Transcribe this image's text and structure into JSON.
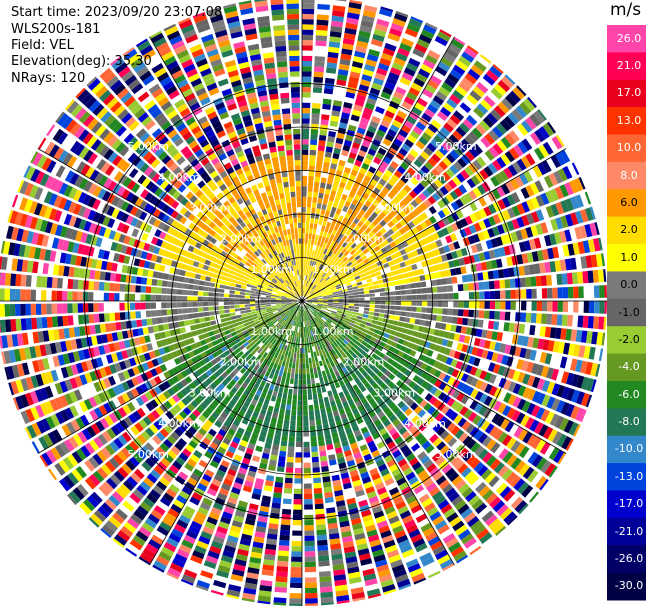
{
  "header": {
    "start_time": "Start time: 2023/09/20 23:07:08",
    "instrument": "WLS200s-181",
    "field": "Field: VEL",
    "elevation": "Elevation(deg): 35.30",
    "nrays": "NRays: 120"
  },
  "colorbar": {
    "unit": "m/s",
    "ticks": [
      "26.0",
      "21.0",
      "17.0",
      "13.0",
      "10.0",
      "8.0",
      "6.0",
      "2.0",
      "1.0",
      "0.0",
      "-1.0",
      "-2.0",
      "-4.0",
      "-6.0",
      "-8.0",
      "-10.0",
      "-13.0",
      "-17.0",
      "-21.0",
      "-26.0",
      "-30.0"
    ],
    "colors": [
      "#ff44aa",
      "#ff0055",
      "#e8001c",
      "#ff3300",
      "#ff6633",
      "#ff8866",
      "#ff9900",
      "#ffdd00",
      "#ffff00",
      "#7a7a7a",
      "#666666",
      "#99cc33",
      "#669922",
      "#228822",
      "#227755",
      "#3388cc",
      "#0044dd",
      "#0000cc",
      "#000099",
      "#000066",
      "#000044"
    ]
  },
  "chart_data": {
    "type": "ppi",
    "title": "",
    "field": "VEL",
    "unit": "m/s",
    "nrays": 120,
    "range_rings_km": [
      1.0,
      2.0,
      3.0,
      4.0,
      5.0
    ],
    "ring_labels": [
      "1.00km",
      "2.00km",
      "3.00km",
      "4.00km",
      "5.00km"
    ],
    "spokes_deg": [
      0,
      30,
      60,
      90,
      120,
      150,
      180,
      210,
      240,
      270,
      300,
      330
    ],
    "value_range": [
      -30.0,
      26.0
    ],
    "pattern": {
      "north_sector_inner_velocity": 6.0,
      "north_sector_mid_velocity": 2.0,
      "south_sector_inner_velocity": -4.0,
      "south_sector_mid_velocity": -6.0,
      "valid_range_km": 3.3,
      "outer_region": "noise"
    }
  }
}
